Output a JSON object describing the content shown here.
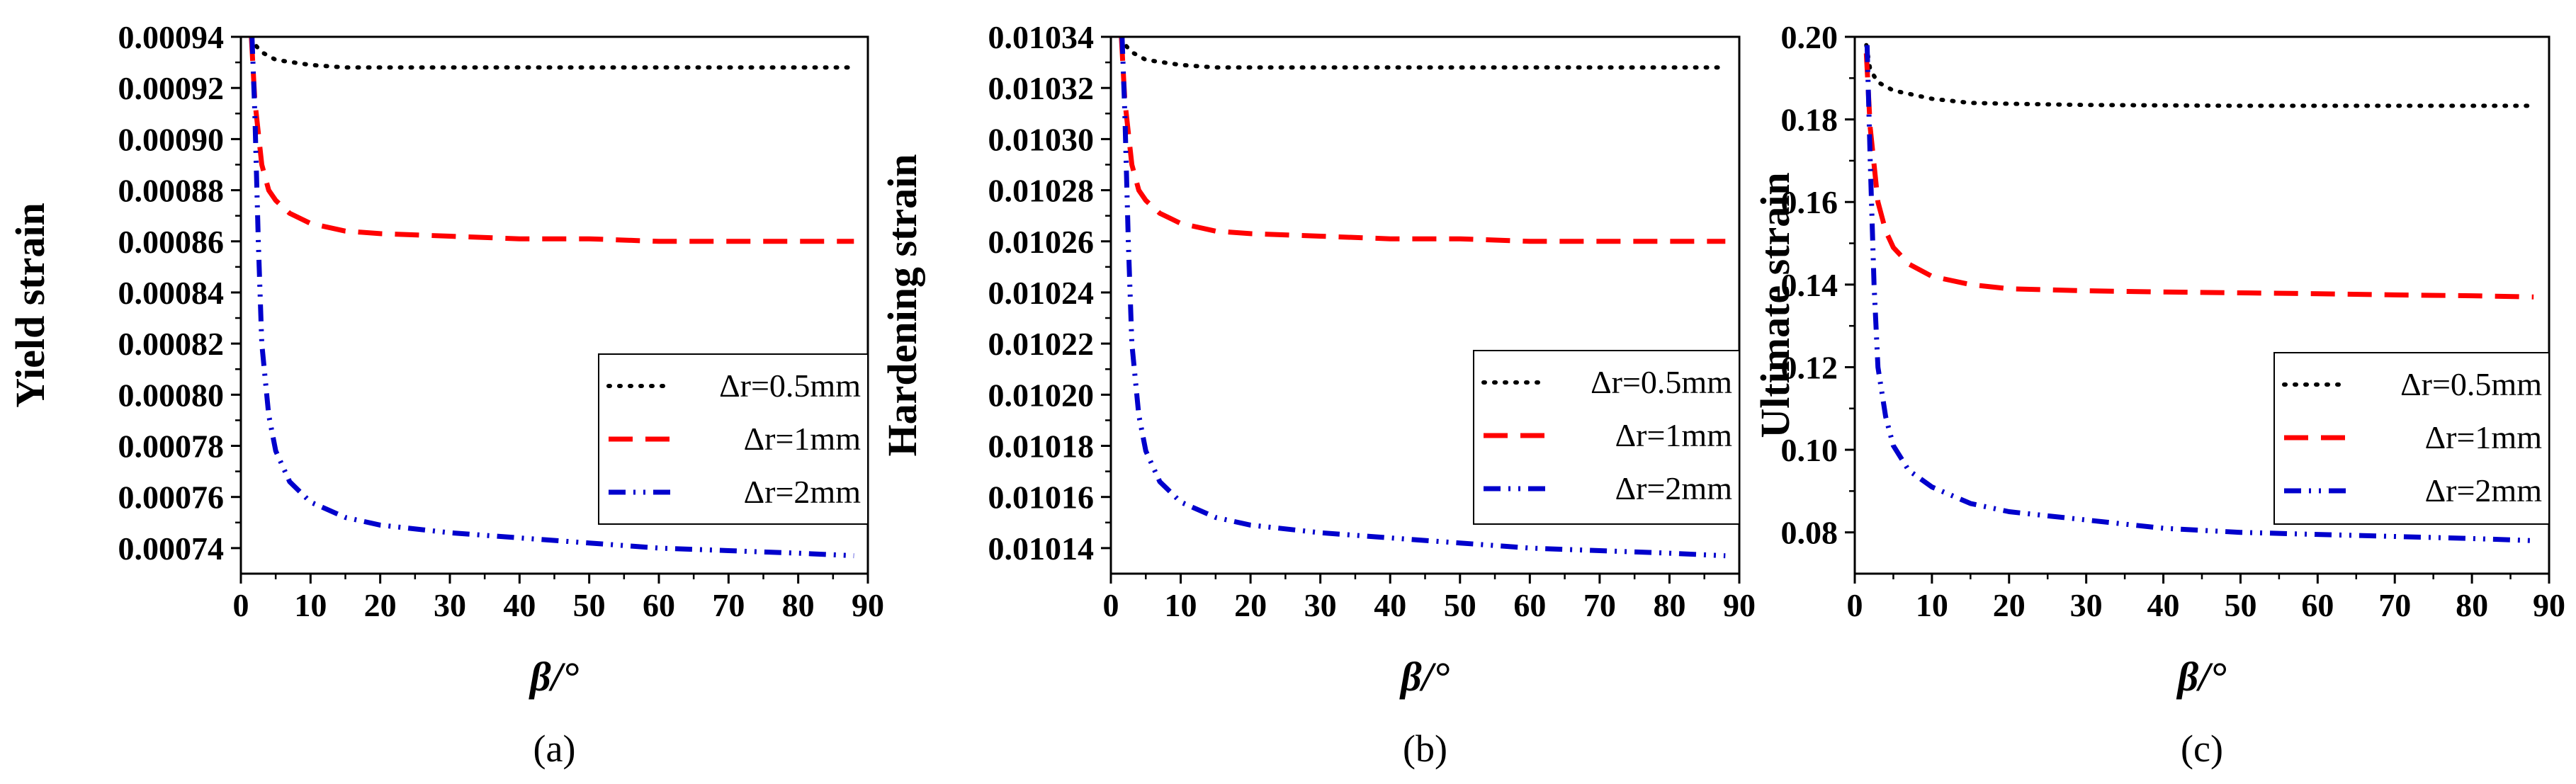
{
  "chart_data": [
    {
      "type": "line",
      "panel_label": "(a)",
      "xlabel": "β/°",
      "ylabel": "Yield strain",
      "xlim": [
        0,
        90
      ],
      "ylim": [
        0.00073,
        0.00094
      ],
      "xticks": [
        "0",
        "10",
        "20",
        "30",
        "40",
        "50",
        "60",
        "70",
        "80",
        "90"
      ],
      "yticks": [
        "0.00074",
        "0.00076",
        "0.00078",
        "0.00080",
        "0.00082",
        "0.00084",
        "0.00086",
        "0.00088",
        "0.00090",
        "0.00092",
        "0.00094"
      ],
      "legend_position": "lower-right",
      "series": [
        {
          "name": "Δr=0.5mm",
          "color": "#000000",
          "style": "dotted",
          "x": [
            1.5,
            2,
            3,
            5,
            10,
            15,
            20,
            30,
            40,
            50,
            60,
            70,
            80,
            88
          ],
          "y": [
            0.00094,
            0.000937,
            0.000934,
            0.000931,
            0.000929,
            0.000928,
            0.000928,
            0.000928,
            0.000928,
            0.000928,
            0.000928,
            0.000928,
            0.000928,
            0.000928
          ]
        },
        {
          "name": "Δr=1mm",
          "color": "#ff0000",
          "style": "dashed",
          "x": [
            1.5,
            2,
            3,
            4,
            5,
            7,
            10,
            15,
            20,
            30,
            40,
            50,
            60,
            70,
            80,
            88
          ],
          "y": [
            0.00094,
            0.000915,
            0.00089,
            0.00088,
            0.000876,
            0.000871,
            0.000867,
            0.000864,
            0.000863,
            0.000862,
            0.000861,
            0.000861,
            0.00086,
            0.00086,
            0.00086,
            0.00086
          ]
        },
        {
          "name": "Δr=2mm",
          "color": "#0000cc",
          "style": "dashdotdot",
          "x": [
            1.6,
            2,
            2.5,
            3,
            4,
            5,
            7,
            10,
            15,
            20,
            30,
            40,
            50,
            60,
            70,
            80,
            88
          ],
          "y": [
            0.00094,
            0.00091,
            0.00086,
            0.00082,
            0.000792,
            0.000778,
            0.000766,
            0.000758,
            0.000752,
            0.000749,
            0.000746,
            0.000744,
            0.000742,
            0.00074,
            0.000739,
            0.000738,
            0.000737
          ]
        }
      ]
    },
    {
      "type": "line",
      "panel_label": "(b)",
      "xlabel": "β/°",
      "ylabel": "Hardening strain",
      "xlim": [
        0,
        90
      ],
      "ylim": [
        0.01013,
        0.01034
      ],
      "xticks": [
        "0",
        "10",
        "20",
        "30",
        "40",
        "50",
        "60",
        "70",
        "80",
        "90"
      ],
      "yticks": [
        "0.01014",
        "0.01016",
        "0.01018",
        "0.01020",
        "0.01022",
        "0.01024",
        "0.01026",
        "0.01028",
        "0.01030",
        "0.01032",
        "0.01034"
      ],
      "legend_position": "lower-right",
      "series": [
        {
          "name": "Δr=0.5mm",
          "color": "#000000",
          "style": "dotted",
          "x": [
            1.5,
            2,
            3,
            5,
            10,
            15,
            20,
            30,
            40,
            50,
            60,
            70,
            80,
            88
          ],
          "y": [
            0.01034,
            0.010337,
            0.010334,
            0.010331,
            0.010329,
            0.010328,
            0.010328,
            0.010328,
            0.010328,
            0.010328,
            0.010328,
            0.010328,
            0.010328,
            0.010328
          ]
        },
        {
          "name": "Δr=1mm",
          "color": "#ff0000",
          "style": "dashed",
          "x": [
            1.5,
            2,
            3,
            4,
            5,
            7,
            10,
            15,
            20,
            30,
            40,
            50,
            60,
            70,
            80,
            88
          ],
          "y": [
            0.01034,
            0.010315,
            0.01029,
            0.01028,
            0.010276,
            0.010271,
            0.010267,
            0.010264,
            0.010263,
            0.010262,
            0.010261,
            0.010261,
            0.01026,
            0.01026,
            0.01026,
            0.01026
          ]
        },
        {
          "name": "Δr=2mm",
          "color": "#0000cc",
          "style": "dashdotdot",
          "x": [
            1.6,
            2,
            2.5,
            3,
            4,
            5,
            7,
            10,
            15,
            20,
            30,
            40,
            50,
            60,
            70,
            80,
            88
          ],
          "y": [
            0.01034,
            0.01031,
            0.01026,
            0.01022,
            0.010192,
            0.010178,
            0.010166,
            0.010158,
            0.010152,
            0.010149,
            0.010146,
            0.010144,
            0.010142,
            0.01014,
            0.010139,
            0.010138,
            0.010137
          ]
        }
      ]
    },
    {
      "type": "line",
      "panel_label": "(c)",
      "xlabel": "β/°",
      "ylabel": "Ultimate strain",
      "xlim": [
        0,
        90
      ],
      "ylim": [
        0.07,
        0.2
      ],
      "xticks": [
        "0",
        "10",
        "20",
        "30",
        "40",
        "50",
        "60",
        "70",
        "80",
        "90"
      ],
      "yticks": [
        "0.08",
        "0.10",
        "0.12",
        "0.14",
        "0.16",
        "0.18",
        "0.20"
      ],
      "legend_position": "lower-right",
      "series": [
        {
          "name": "Δr=0.5mm",
          "color": "#000000",
          "style": "dotted",
          "x": [
            1.5,
            2,
            3,
            5,
            10,
            15,
            20,
            30,
            40,
            50,
            60,
            70,
            80,
            88
          ],
          "y": [
            0.198,
            0.192,
            0.189,
            0.187,
            0.185,
            0.184,
            0.1838,
            0.1835,
            0.1834,
            0.1833,
            0.1833,
            0.1833,
            0.1833,
            0.1833
          ]
        },
        {
          "name": "Δr=1mm",
          "color": "#ff0000",
          "style": "dashed",
          "x": [
            1.5,
            2,
            3,
            4,
            5,
            7,
            10,
            15,
            20,
            30,
            40,
            50,
            60,
            70,
            80,
            88
          ],
          "y": [
            0.196,
            0.178,
            0.16,
            0.153,
            0.149,
            0.145,
            0.142,
            0.14,
            0.139,
            0.1385,
            0.1382,
            0.138,
            0.1378,
            0.1375,
            0.1373,
            0.137
          ]
        },
        {
          "name": "Δr=2mm",
          "color": "#0000cc",
          "style": "dashdotdot",
          "x": [
            1.6,
            2,
            2.5,
            3,
            4,
            5,
            7,
            10,
            15,
            20,
            30,
            40,
            50,
            60,
            70,
            80,
            88
          ],
          "y": [
            0.198,
            0.17,
            0.14,
            0.12,
            0.108,
            0.101,
            0.095,
            0.091,
            0.087,
            0.085,
            0.083,
            0.081,
            0.08,
            0.0795,
            0.079,
            0.0785,
            0.078
          ]
        }
      ]
    }
  ]
}
